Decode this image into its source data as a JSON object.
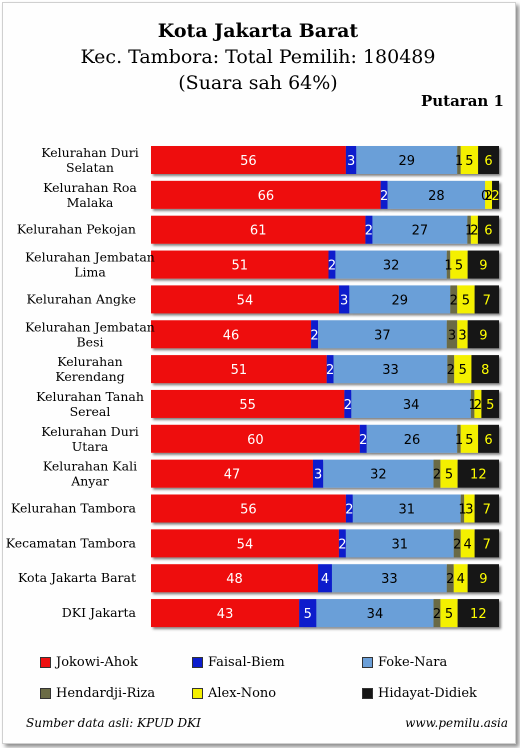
{
  "title": "Kota Jakarta Barat",
  "subtitle1": "Kec. Tambora: Total Pemilih: 180489",
  "subtitle2": "(Suara sah 64%)",
  "round": "Putaran 1",
  "source": "Sumber data asli: KPUD DKI",
  "website": "www.pemilu.asia",
  "chart_data": {
    "type": "bar",
    "orientation": "horizontal",
    "stacked": true,
    "percent_stacked": true,
    "legend_position": "bottom",
    "categories": [
      "Kelurahan Duri Selatan",
      "Kelurahan Roa Malaka",
      "Kelurahan Pekojan",
      "Kelurahan Jembatan Lima",
      "Kelurahan Angke",
      "Kelurahan Jembatan Besi",
      "Kelurahan Kerendang",
      "Kelurahan Tanah Sereal",
      "Kelurahan Duri Utara",
      "Kelurahan Kali Anyar",
      "Kelurahan Tambora",
      "Kecamatan Tambora",
      "Kota Jakarta Barat",
      "DKI Jakarta"
    ],
    "category_lines": [
      [
        "Kelurahan Duri",
        "Selatan"
      ],
      [
        "Kelurahan Roa",
        "Malaka"
      ],
      [
        "Kelurahan Pekojan"
      ],
      [
        "Kelurahan Jembatan",
        "Lima"
      ],
      [
        "Kelurahan Angke"
      ],
      [
        "Kelurahan Jembatan",
        "Besi"
      ],
      [
        "Kelurahan",
        "Kerendang"
      ],
      [
        "Kelurahan Tanah",
        "Sereal"
      ],
      [
        "Kelurahan Duri",
        "Utara"
      ],
      [
        "Kelurahan Kali",
        "Anyar"
      ],
      [
        "Kelurahan Tambora"
      ],
      [
        "Kecamatan Tambora"
      ],
      [
        "Kota Jakarta Barat"
      ],
      [
        "DKI Jakarta"
      ]
    ],
    "series": [
      {
        "name": "Jokowi-Ahok",
        "color": "#ee1111",
        "label_color": "#ffffff",
        "values": [
          56,
          66,
          61,
          51,
          54,
          46,
          51,
          55,
          60,
          47,
          56,
          54,
          48,
          43
        ]
      },
      {
        "name": "Faisal-Biem",
        "color": "#0b1ccc",
        "label_color": "#ffffff",
        "values": [
          3,
          2,
          2,
          2,
          3,
          2,
          2,
          2,
          2,
          3,
          2,
          2,
          4,
          5
        ]
      },
      {
        "name": "Foke-Nara",
        "color": "#6b9fd8",
        "label_color": "#000000",
        "values": [
          29,
          28,
          27,
          32,
          29,
          37,
          33,
          34,
          26,
          32,
          31,
          31,
          33,
          34
        ]
      },
      {
        "name": "Hendardji-Riza",
        "color": "#6b6b45",
        "label_color": "#000000",
        "values": [
          1,
          0,
          1,
          1,
          2,
          3,
          2,
          1,
          1,
          2,
          1,
          2,
          2,
          2
        ]
      },
      {
        "name": "Alex-Nono",
        "color": "#f4f000",
        "label_color": "#000000",
        "values": [
          5,
          2,
          2,
          5,
          5,
          3,
          5,
          2,
          5,
          5,
          3,
          4,
          4,
          5
        ]
      },
      {
        "name": "Hidayat-Didiek",
        "color": "#151515",
        "label_color": "#ffff00",
        "values": [
          6,
          2,
          6,
          9,
          7,
          9,
          8,
          5,
          6,
          12,
          7,
          7,
          9,
          12
        ]
      }
    ]
  }
}
